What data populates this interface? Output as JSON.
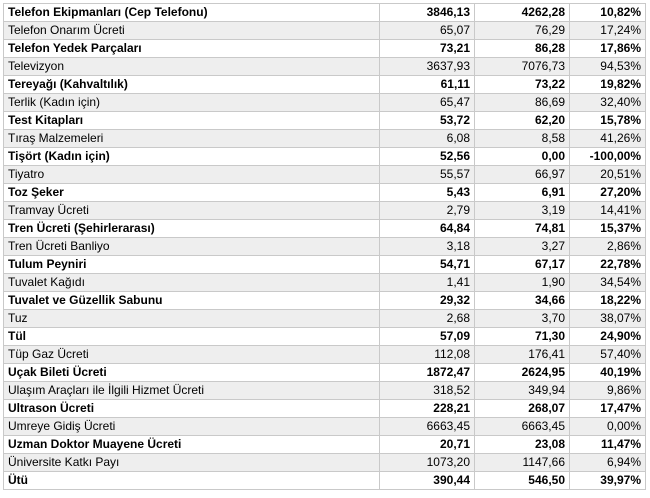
{
  "rows": [
    {
      "name": "Telefon Ekipmanları (Cep Telefonu)",
      "v1": "3846,13",
      "v2": "4262,28",
      "pct": "10,82%",
      "bold": true
    },
    {
      "name": "Telefon Onarım Ücreti",
      "v1": "65,07",
      "v2": "76,29",
      "pct": "17,24%",
      "bold": false
    },
    {
      "name": "Telefon Yedek Parçaları",
      "v1": "73,21",
      "v2": "86,28",
      "pct": "17,86%",
      "bold": true
    },
    {
      "name": "Televizyon",
      "v1": "3637,93",
      "v2": "7076,73",
      "pct": "94,53%",
      "bold": false
    },
    {
      "name": "Tereyağı (Kahvaltılık)",
      "v1": "61,11",
      "v2": "73,22",
      "pct": "19,82%",
      "bold": true
    },
    {
      "name": "Terlik (Kadın için)",
      "v1": "65,47",
      "v2": "86,69",
      "pct": "32,40%",
      "bold": false
    },
    {
      "name": "Test Kitapları",
      "v1": "53,72",
      "v2": "62,20",
      "pct": "15,78%",
      "bold": true
    },
    {
      "name": "Tıraş Malzemeleri",
      "v1": "6,08",
      "v2": "8,58",
      "pct": "41,26%",
      "bold": false
    },
    {
      "name": "Tişört (Kadın için)",
      "v1": "52,56",
      "v2": "0,00",
      "pct": "-100,00%",
      "bold": true
    },
    {
      "name": "Tiyatro",
      "v1": "55,57",
      "v2": "66,97",
      "pct": "20,51%",
      "bold": false
    },
    {
      "name": "Toz Şeker",
      "v1": "5,43",
      "v2": "6,91",
      "pct": "27,20%",
      "bold": true
    },
    {
      "name": "Tramvay Ücreti",
      "v1": "2,79",
      "v2": "3,19",
      "pct": "14,41%",
      "bold": false
    },
    {
      "name": "Tren Ücreti (Şehirlerarası)",
      "v1": "64,84",
      "v2": "74,81",
      "pct": "15,37%",
      "bold": true
    },
    {
      "name": "Tren Ücreti Banliyo",
      "v1": "3,18",
      "v2": "3,27",
      "pct": "2,86%",
      "bold": false
    },
    {
      "name": "Tulum Peyniri",
      "v1": "54,71",
      "v2": "67,17",
      "pct": "22,78%",
      "bold": true
    },
    {
      "name": "Tuvalet Kağıdı",
      "v1": "1,41",
      "v2": "1,90",
      "pct": "34,54%",
      "bold": false
    },
    {
      "name": "Tuvalet ve Güzellik Sabunu",
      "v1": "29,32",
      "v2": "34,66",
      "pct": "18,22%",
      "bold": true
    },
    {
      "name": "Tuz",
      "v1": "2,68",
      "v2": "3,70",
      "pct": "38,07%",
      "bold": false
    },
    {
      "name": "Tül",
      "v1": "57,09",
      "v2": "71,30",
      "pct": "24,90%",
      "bold": true
    },
    {
      "name": "Tüp Gaz Ücreti",
      "v1": "112,08",
      "v2": "176,41",
      "pct": "57,40%",
      "bold": false
    },
    {
      "name": "Uçak Bileti Ücreti",
      "v1": "1872,47",
      "v2": "2624,95",
      "pct": "40,19%",
      "bold": true
    },
    {
      "name": "Ulaşım Araçları ile İlgili Hizmet Ücreti",
      "v1": "318,52",
      "v2": "349,94",
      "pct": "9,86%",
      "bold": false
    },
    {
      "name": "Ultrason Ücreti",
      "v1": "228,21",
      "v2": "268,07",
      "pct": "17,47%",
      "bold": true
    },
    {
      "name": "Umreye Gidiş Ücreti",
      "v1": "6663,45",
      "v2": "6663,45",
      "pct": "0,00%",
      "bold": false
    },
    {
      "name": "Uzman Doktor Muayene Ücreti",
      "v1": "20,71",
      "v2": "23,08",
      "pct": "11,47%",
      "bold": true
    },
    {
      "name": "Üniversite Katkı Payı",
      "v1": "1073,20",
      "v2": "1147,66",
      "pct": "6,94%",
      "bold": false
    },
    {
      "name": "Ütü",
      "v1": "390,44",
      "v2": "546,50",
      "pct": "39,97%",
      "bold": true
    }
  ]
}
